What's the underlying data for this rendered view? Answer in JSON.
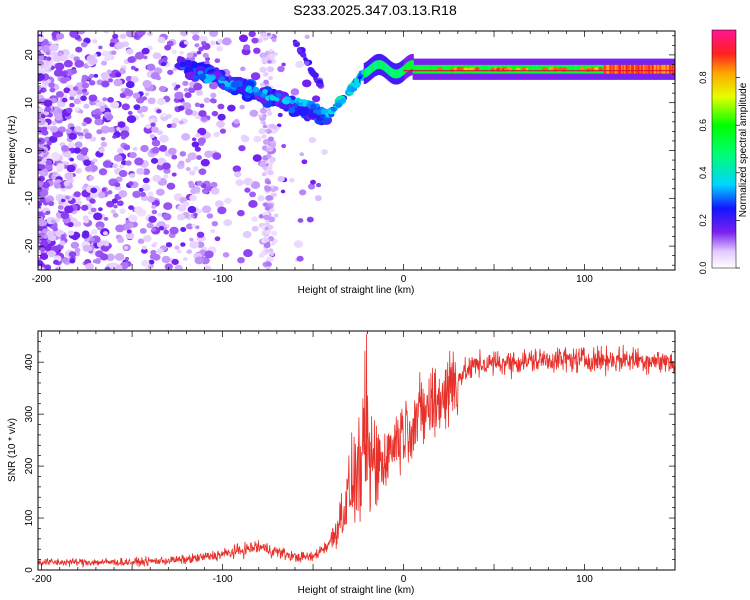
{
  "title": "S233.2025.347.03.13.R18",
  "chart_data": [
    {
      "type": "heatmap",
      "name": "spectrogram",
      "xlabel": "Height of straight line (km)",
      "ylabel": "Frequency (Hz)",
      "xlim": [
        -202,
        150
      ],
      "ylim": [
        -25,
        25
      ],
      "xticks": [
        -200,
        -100,
        0,
        100
      ],
      "yticks": [
        -20,
        -10,
        0,
        10,
        20
      ],
      "colorbar": {
        "label": "Normalized spectral amplitude",
        "range": [
          0.0,
          1.0
        ],
        "ticks": [
          0.0,
          0.2,
          0.4,
          0.6,
          0.8
        ]
      },
      "features": [
        {
          "name": "stable-tone",
          "x": [
            -5,
            150
          ],
          "freq_hz": 17.0,
          "amplitude": [
            0.55,
            0.95
          ]
        },
        {
          "name": "low-height-ridge",
          "x": [
            -125,
            -40
          ],
          "freq_hz": [
            18,
            7
          ],
          "amplitude": [
            0.2,
            0.45
          ]
        },
        {
          "name": "rising-branch",
          "x": [
            -40,
            -20
          ],
          "freq_hz": [
            8,
            16
          ],
          "amplitude": [
            0.3,
            0.5
          ]
        },
        {
          "name": "upper-branch",
          "x": [
            -60,
            -45
          ],
          "freq_hz": [
            23,
            13
          ],
          "amplitude": [
            0.15,
            0.3
          ]
        },
        {
          "name": "noise-floor",
          "x": [
            -202,
            -40
          ],
          "freq_hz": [
            -25,
            25
          ],
          "amplitude": [
            0.05,
            0.2
          ]
        }
      ]
    },
    {
      "type": "line",
      "name": "snr",
      "xlabel": "Height of straight line (km)",
      "ylabel": "SNR (10 * v/v)",
      "xlim": [
        -202,
        150
      ],
      "ylim": [
        0,
        460
      ],
      "xticks": [
        -200,
        -100,
        0,
        100
      ],
      "yticks": [
        0,
        100,
        200,
        300,
        400
      ],
      "color": "#e8302a",
      "series": [
        {
          "name": "SNR trend",
          "x": [
            -202,
            -150,
            -120,
            -100,
            -80,
            -60,
            -50,
            -40,
            -35,
            -30,
            -25,
            -20,
            -15,
            -10,
            0,
            10,
            20,
            30,
            40,
            60,
            80,
            100,
            130,
            150
          ],
          "values": [
            15,
            15,
            20,
            30,
            45,
            25,
            25,
            55,
            100,
            150,
            190,
            210,
            200,
            220,
            270,
            300,
            330,
            370,
            395,
            400,
            405,
            405,
            405,
            400
          ]
        }
      ]
    }
  ]
}
